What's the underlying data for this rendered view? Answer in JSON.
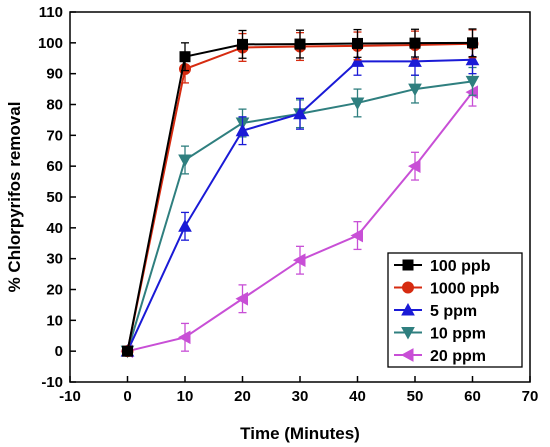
{
  "chart_data": {
    "type": "line",
    "title": "",
    "xlabel": "Time (Minutes)",
    "ylabel": "% Chlorpyrifos removal",
    "xlim": [
      -10,
      70
    ],
    "ylim": [
      -10,
      110
    ],
    "xticks": [
      -10,
      0,
      10,
      20,
      30,
      40,
      50,
      60,
      70
    ],
    "yticks": [
      -10,
      0,
      10,
      20,
      30,
      40,
      50,
      60,
      70,
      80,
      90,
      100,
      110
    ],
    "legend_position": "bottom-right",
    "grid": false,
    "x": [
      0,
      10,
      20,
      30,
      40,
      50,
      60
    ],
    "series": [
      {
        "name": "100 ppb",
        "color": "#000000",
        "marker": "square",
        "values": [
          0,
          95.5,
          99.5,
          99.6,
          99.8,
          99.9,
          100
        ],
        "errors": [
          0,
          4.5,
          4.5,
          4.5,
          4.5,
          4.5,
          4.5
        ]
      },
      {
        "name": "1000 ppb",
        "color": "#d62b10",
        "marker": "circle",
        "values": [
          0,
          91.5,
          98.5,
          98.8,
          99.0,
          99.3,
          99.7
        ],
        "errors": [
          0,
          4.5,
          4.5,
          4.5,
          4.5,
          4.5,
          4.5
        ]
      },
      {
        "name": "5 ppm",
        "color": "#1a1ad6",
        "marker": "triangle-up",
        "values": [
          0,
          40.5,
          71.5,
          77.0,
          94.0,
          94.0,
          94.5
        ],
        "errors": [
          0,
          4.5,
          4.5,
          5.0,
          4.5,
          4.5,
          4.5
        ]
      },
      {
        "name": "10 ppm",
        "color": "#2f7f7f",
        "marker": "triangle-down",
        "values": [
          0,
          62.0,
          74.0,
          77.0,
          80.5,
          85.0,
          87.5
        ],
        "errors": [
          0,
          4.5,
          4.5,
          4.5,
          4.5,
          4.5,
          4.5
        ]
      },
      {
        "name": "20 ppm",
        "color": "#c84fd6",
        "marker": "triangle-left",
        "values": [
          0,
          4.5,
          17.0,
          29.5,
          37.5,
          60.0,
          84.0
        ],
        "errors": [
          0,
          4.5,
          4.5,
          4.5,
          4.5,
          4.5,
          4.5
        ]
      }
    ]
  }
}
